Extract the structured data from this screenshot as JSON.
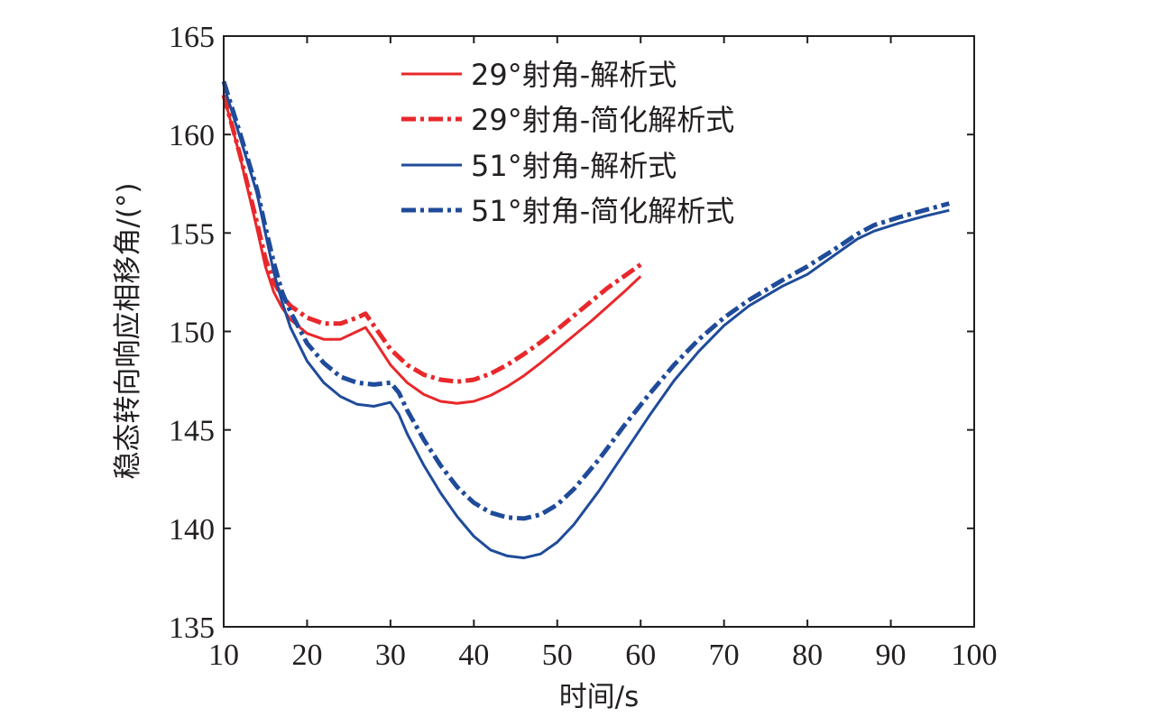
{
  "chart_data": {
    "type": "line",
    "xlabel": "时间/s",
    "ylabel": "稳态转向响应相移角/(°)",
    "xlim": [
      10,
      100
    ],
    "ylim": [
      135,
      165
    ],
    "xticks": [
      10,
      20,
      30,
      40,
      50,
      60,
      70,
      80,
      90,
      100
    ],
    "yticks": [
      135,
      140,
      145,
      150,
      155,
      160,
      165
    ],
    "grid": false,
    "legend_position": "top-center",
    "series": [
      {
        "name": "29°射角-解析式",
        "color": "#e8282b",
        "style": "solid",
        "x": [
          10,
          12,
          14,
          15,
          16,
          17,
          18,
          20,
          22,
          24,
          26,
          27,
          28,
          30,
          32,
          34,
          36,
          38,
          40,
          42,
          44,
          46,
          48,
          50,
          52,
          54,
          56,
          58,
          60
        ],
        "y": [
          162.0,
          158.8,
          155.2,
          153.3,
          152.0,
          151.2,
          150.6,
          149.9,
          149.6,
          149.6,
          150.0,
          150.2,
          149.6,
          148.3,
          147.4,
          146.8,
          146.45,
          146.35,
          146.45,
          146.75,
          147.2,
          147.75,
          148.4,
          149.1,
          149.8,
          150.5,
          151.25,
          152.0,
          152.8
        ]
      },
      {
        "name": "29°射角-简化解析式",
        "color": "#e8282b",
        "style": "dashdot",
        "x": [
          10,
          12,
          14,
          15,
          16,
          17,
          18,
          20,
          22,
          24,
          26,
          27,
          28,
          30,
          32,
          34,
          36,
          38,
          40,
          42,
          44,
          46,
          48,
          50,
          52,
          54,
          56,
          58,
          60
        ],
        "y": [
          162.0,
          158.9,
          155.5,
          153.7,
          152.5,
          151.8,
          151.3,
          150.7,
          150.4,
          150.4,
          150.7,
          150.9,
          150.3,
          149.1,
          148.3,
          147.8,
          147.55,
          147.45,
          147.55,
          147.85,
          148.3,
          148.85,
          149.45,
          150.1,
          150.8,
          151.5,
          152.2,
          152.8,
          153.4
        ]
      },
      {
        "name": "51°射角-解析式",
        "color": "#1f4b9a",
        "style": "solid",
        "x": [
          10,
          12,
          14,
          15,
          16,
          17,
          18,
          20,
          22,
          24,
          26,
          28,
          30,
          31,
          32,
          34,
          36,
          38,
          40,
          42,
          44,
          46,
          48,
          50,
          52,
          55,
          58,
          61,
          64,
          67,
          70,
          73,
          77,
          80,
          83,
          86,
          88,
          91,
          94,
          97
        ],
        "y": [
          162.5,
          159.8,
          157.0,
          155.0,
          153.0,
          151.5,
          150.2,
          148.5,
          147.4,
          146.7,
          146.3,
          146.2,
          146.4,
          145.8,
          144.8,
          143.2,
          141.8,
          140.6,
          139.6,
          138.9,
          138.6,
          138.5,
          138.7,
          139.3,
          140.2,
          141.9,
          143.8,
          145.7,
          147.5,
          149.0,
          150.3,
          151.3,
          152.3,
          152.9,
          153.8,
          154.7,
          155.1,
          155.5,
          155.85,
          156.15
        ]
      },
      {
        "name": "51°射角-简化解析式",
        "color": "#1f4b9a",
        "style": "dashdot",
        "x": [
          10,
          12,
          14,
          15,
          16,
          17,
          18,
          20,
          22,
          24,
          26,
          28,
          30,
          31,
          32,
          34,
          36,
          38,
          40,
          42,
          44,
          46,
          48,
          50,
          52,
          55,
          58,
          61,
          64,
          67,
          70,
          73,
          77,
          80,
          83,
          86,
          88,
          91,
          94,
          97
        ],
        "y": [
          162.7,
          160.0,
          157.2,
          155.3,
          153.5,
          152.0,
          151.0,
          149.4,
          148.4,
          147.7,
          147.4,
          147.3,
          147.4,
          146.9,
          146.0,
          144.5,
          143.2,
          142.1,
          141.3,
          140.8,
          140.55,
          140.5,
          140.7,
          141.2,
          142.0,
          143.5,
          145.2,
          146.8,
          148.3,
          149.6,
          150.7,
          151.6,
          152.6,
          153.3,
          154.1,
          154.95,
          155.4,
          155.8,
          156.15,
          156.5
        ]
      }
    ]
  }
}
